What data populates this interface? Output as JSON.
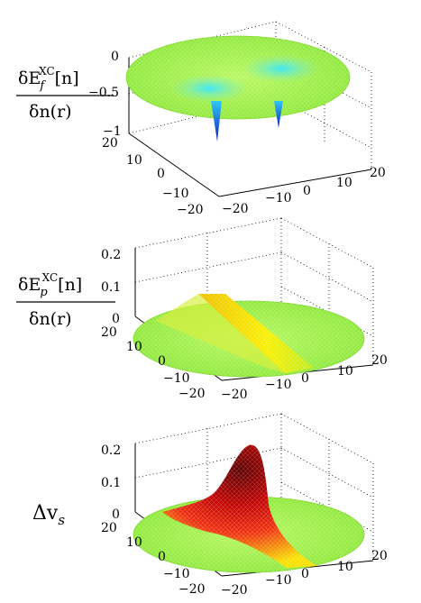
{
  "chart_data": [
    {
      "type": "surface",
      "label": {
        "numerator_prefix": "δE",
        "sub": "f",
        "sup": "XC",
        "numerator_suffix": "[n]",
        "denominator": "δn(r)"
      },
      "x_ticks": [
        "−20",
        "−10",
        "0",
        "10",
        "20"
      ],
      "y_ticks": [
        "−20",
        "−10",
        "0",
        "10",
        "20"
      ],
      "z_ticks": [
        "0",
        "−0.5",
        "−1"
      ],
      "zlim": [
        -1,
        0
      ],
      "surface": "two negative wells at y=±8 dipping to about −1, flat near 0 elsewhere",
      "colors": {
        "high": "#a8f040",
        "mid": "#40e8f0",
        "low": "#1020d0"
      }
    },
    {
      "type": "surface",
      "label": {
        "numerator_prefix": "δE",
        "sub": "p",
        "sup": "XC",
        "numerator_suffix": "[n]",
        "denominator": "δn(r)"
      },
      "x_ticks": [
        "−20",
        "−10",
        "0",
        "10",
        "20"
      ],
      "y_ticks": [
        "−20",
        "−10",
        "0",
        "10",
        "20"
      ],
      "z_ticks": [
        "0",
        "0.1",
        "0.2"
      ],
      "zlim": [
        0,
        0.2
      ],
      "surface": "step from 0 to about 0.08 across a diagonal ridge",
      "colors": {
        "low": "#a8f040",
        "high": "#f8e800"
      }
    },
    {
      "type": "surface",
      "label": {
        "text": "Δv",
        "sub": "s"
      },
      "x_ticks": [
        "−20",
        "−10",
        "0",
        "10",
        "20"
      ],
      "y_ticks": [
        "−20",
        "−10",
        "0",
        "10",
        "20"
      ],
      "z_ticks": [
        "0",
        "0.1",
        "0.2"
      ],
      "zlim": [
        0,
        0.2
      ],
      "surface": "localized peak reaching about 0.2 near the center",
      "colors": {
        "low": "#a8f040",
        "mid": "#f8e800",
        "high": "#600000"
      }
    }
  ]
}
